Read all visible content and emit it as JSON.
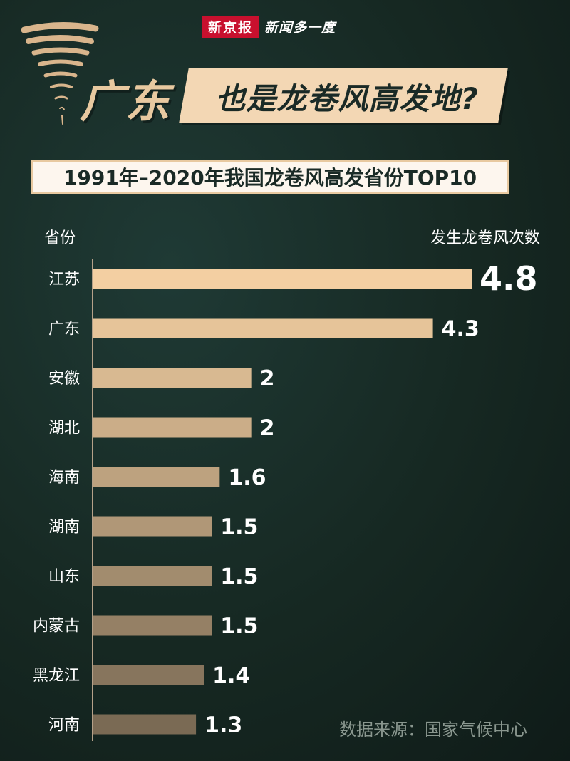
{
  "brand": {
    "logo": "新京报",
    "tagline": "新闻多一度"
  },
  "headline": {
    "main": "广东",
    "sub": "也是龙卷风高发地?"
  },
  "icons": {
    "tornado": "tornado-icon"
  },
  "colors": {
    "bar_top": "#f3cfa2",
    "bar_bottom": "#7a6a54",
    "background": "#162822",
    "accent": "#f3d7b4",
    "brand_red": "#c8102e"
  },
  "chart_data": {
    "type": "bar",
    "orientation": "horizontal",
    "title": "1991年–2020年我国龙卷风高发省份TOP10",
    "ylabel": "省份",
    "xlabel": "发生龙卷风次数",
    "categories": [
      "江苏",
      "广东",
      "安徽",
      "湖北",
      "海南",
      "湖南",
      "山东",
      "内蒙古",
      "黑龙江",
      "河南"
    ],
    "values": [
      4.8,
      4.3,
      2,
      2,
      1.6,
      1.5,
      1.5,
      1.5,
      1.4,
      1.3
    ],
    "value_labels": [
      "4.8",
      "4.3",
      "2",
      "2",
      "1.6",
      "1.5",
      "1.5",
      "1.5",
      "1.4",
      "1.3"
    ],
    "xlim": [
      0,
      4.8
    ],
    "grid": false,
    "legend": "none"
  },
  "source": "数据来源：国家气候中心"
}
